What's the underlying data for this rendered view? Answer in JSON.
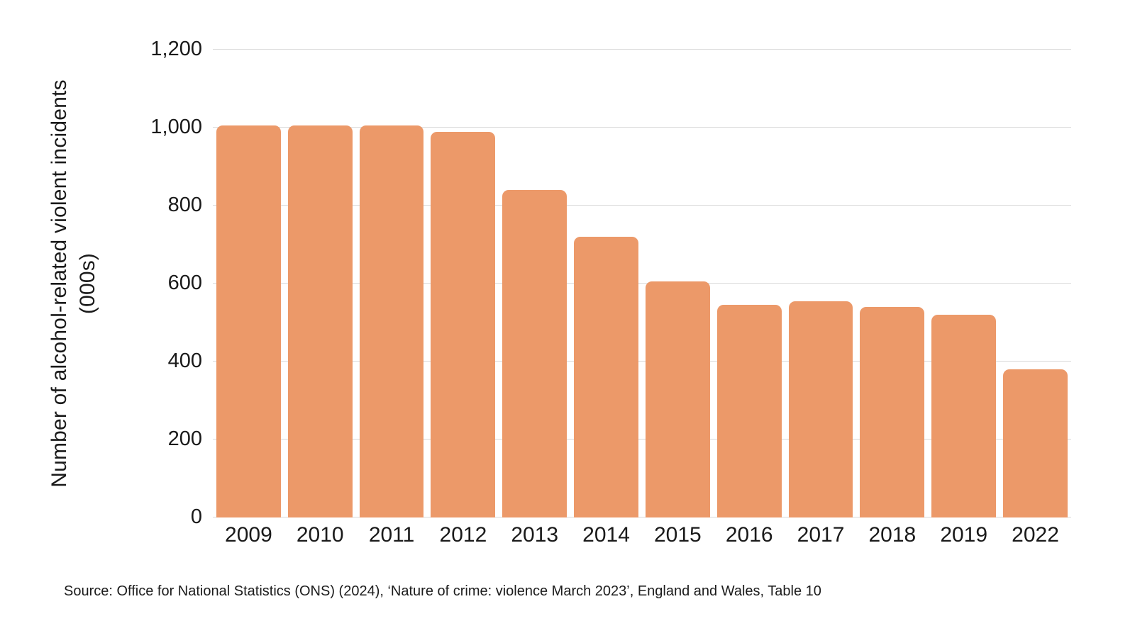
{
  "chart_data": {
    "type": "bar",
    "categories": [
      "2009",
      "2010",
      "2011",
      "2012",
      "2013",
      "2014",
      "2015",
      "2016",
      "2017",
      "2018",
      "2019",
      "2022"
    ],
    "values": [
      1005,
      1005,
      1005,
      990,
      840,
      720,
      605,
      545,
      555,
      540,
      520,
      380
    ],
    "title": "",
    "xlabel": "",
    "ylabel": "Number of alcohol-related violent incidents",
    "ylabel_unit": "(000s)",
    "ylim": [
      0,
      1200
    ],
    "yticks": [
      {
        "value": 0,
        "label": "0"
      },
      {
        "value": 200,
        "label": "200"
      },
      {
        "value": 400,
        "label": "400"
      },
      {
        "value": 600,
        "label": "600"
      },
      {
        "value": 800,
        "label": "800"
      },
      {
        "value": 1000,
        "label": "1,000"
      },
      {
        "value": 1200,
        "label": "1,200"
      }
    ],
    "grid": true,
    "legend": null,
    "bar_color": "#ec9969",
    "gridline_color": "#d9d9d9",
    "text_color": "#1a1a1a"
  },
  "footer": {
    "source": "Source: Office for National Statistics (ONS) (2024), ‘Nature of crime: violence March 2023’, England and Wales, Table 10"
  }
}
